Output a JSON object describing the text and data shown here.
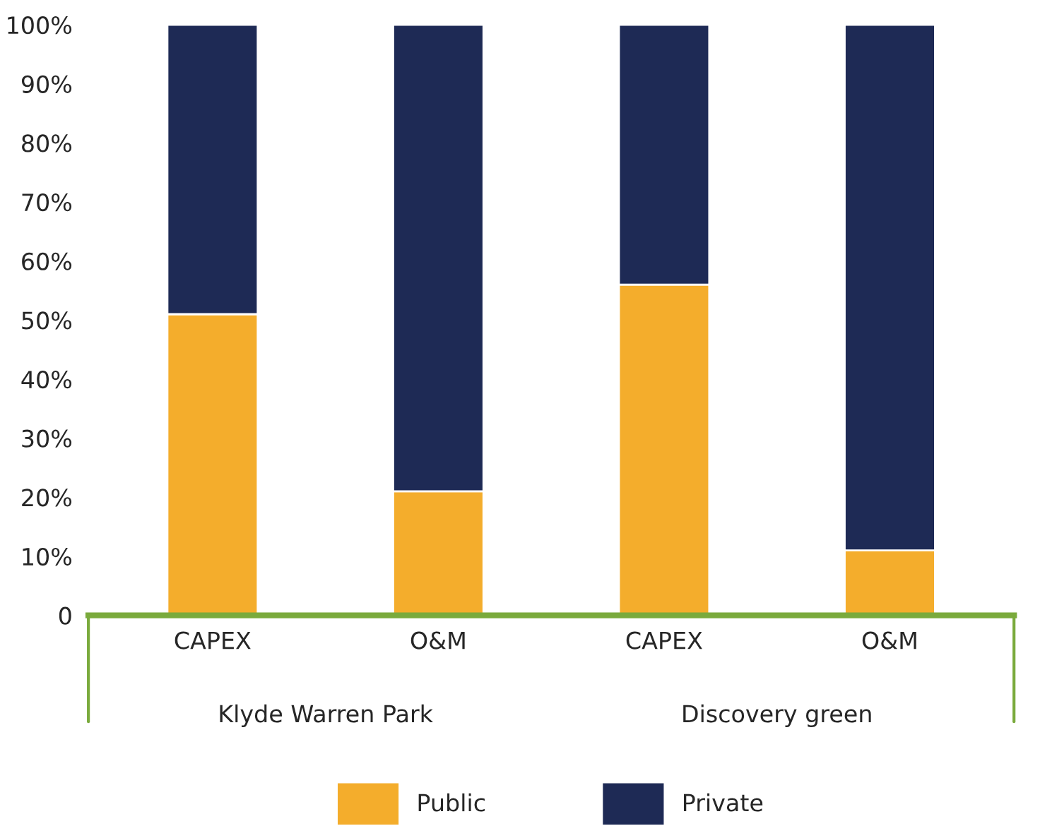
{
  "chart_data": {
    "type": "bar",
    "stacked": true,
    "categories": [
      "CAPEX",
      "O&M",
      "CAPEX",
      "O&M"
    ],
    "series": [
      {
        "name": "Public",
        "color": "#f4ad2c",
        "values": [
          51,
          21,
          56,
          11
        ]
      },
      {
        "name": "Private",
        "color": "#1e2a55",
        "values": [
          49,
          79,
          44,
          89
        ]
      }
    ],
    "ylim": [
      0,
      100
    ],
    "yticks": [
      {
        "value": 0,
        "label": "0"
      },
      {
        "value": 10,
        "label": "10%"
      },
      {
        "value": 20,
        "label": "20%"
      },
      {
        "value": 30,
        "label": "30%"
      },
      {
        "value": 40,
        "label": "40%"
      },
      {
        "value": 50,
        "label": "50%"
      },
      {
        "value": 60,
        "label": "60%"
      },
      {
        "value": 70,
        "label": "70%"
      },
      {
        "value": 80,
        "label": "80%"
      },
      {
        "value": 90,
        "label": "90%"
      },
      {
        "value": 100,
        "label": "100%"
      }
    ],
    "annotations": [
      "Klyde Warren Park",
      "Discovery green"
    ],
    "grid": false,
    "legend": "bottom"
  }
}
